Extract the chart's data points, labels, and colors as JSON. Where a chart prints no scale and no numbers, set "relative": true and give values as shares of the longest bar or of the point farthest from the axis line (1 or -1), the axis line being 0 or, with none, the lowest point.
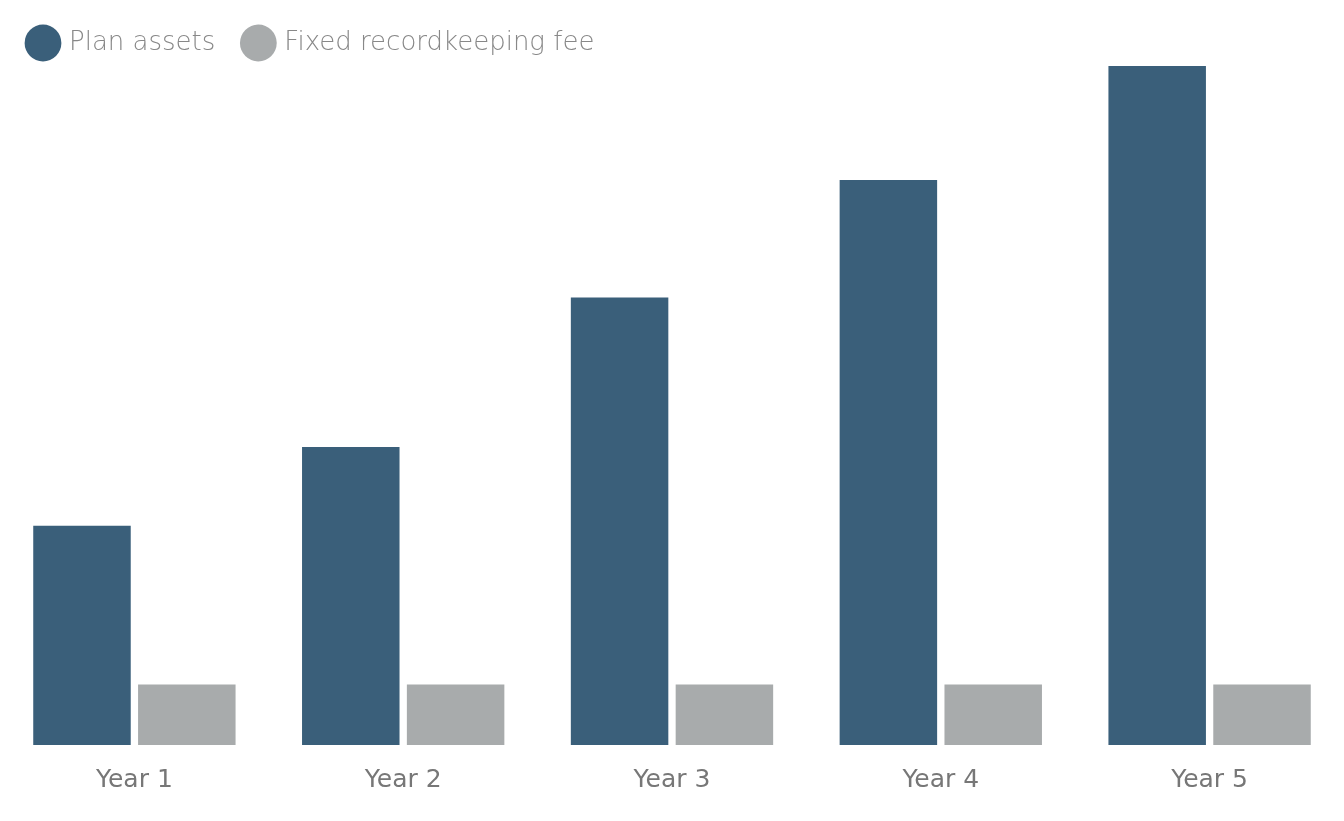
{
  "chart_data": {
    "type": "bar",
    "relative": true,
    "categories": [
      "Year 1",
      "Year 2",
      "Year 3",
      "Year 4",
      "Year 5"
    ],
    "series": [
      {
        "name": "Plan assets",
        "color": "#3a5f7a",
        "values": [
          0.323,
          0.439,
          0.659,
          0.832,
          1
        ]
      },
      {
        "name": "Fixed recordkeeping fee",
        "color": "#a8abac",
        "values": [
          0.089,
          0.089,
          0.089,
          0.089,
          0.089
        ]
      }
    ],
    "legend": "top left",
    "grid": false
  }
}
